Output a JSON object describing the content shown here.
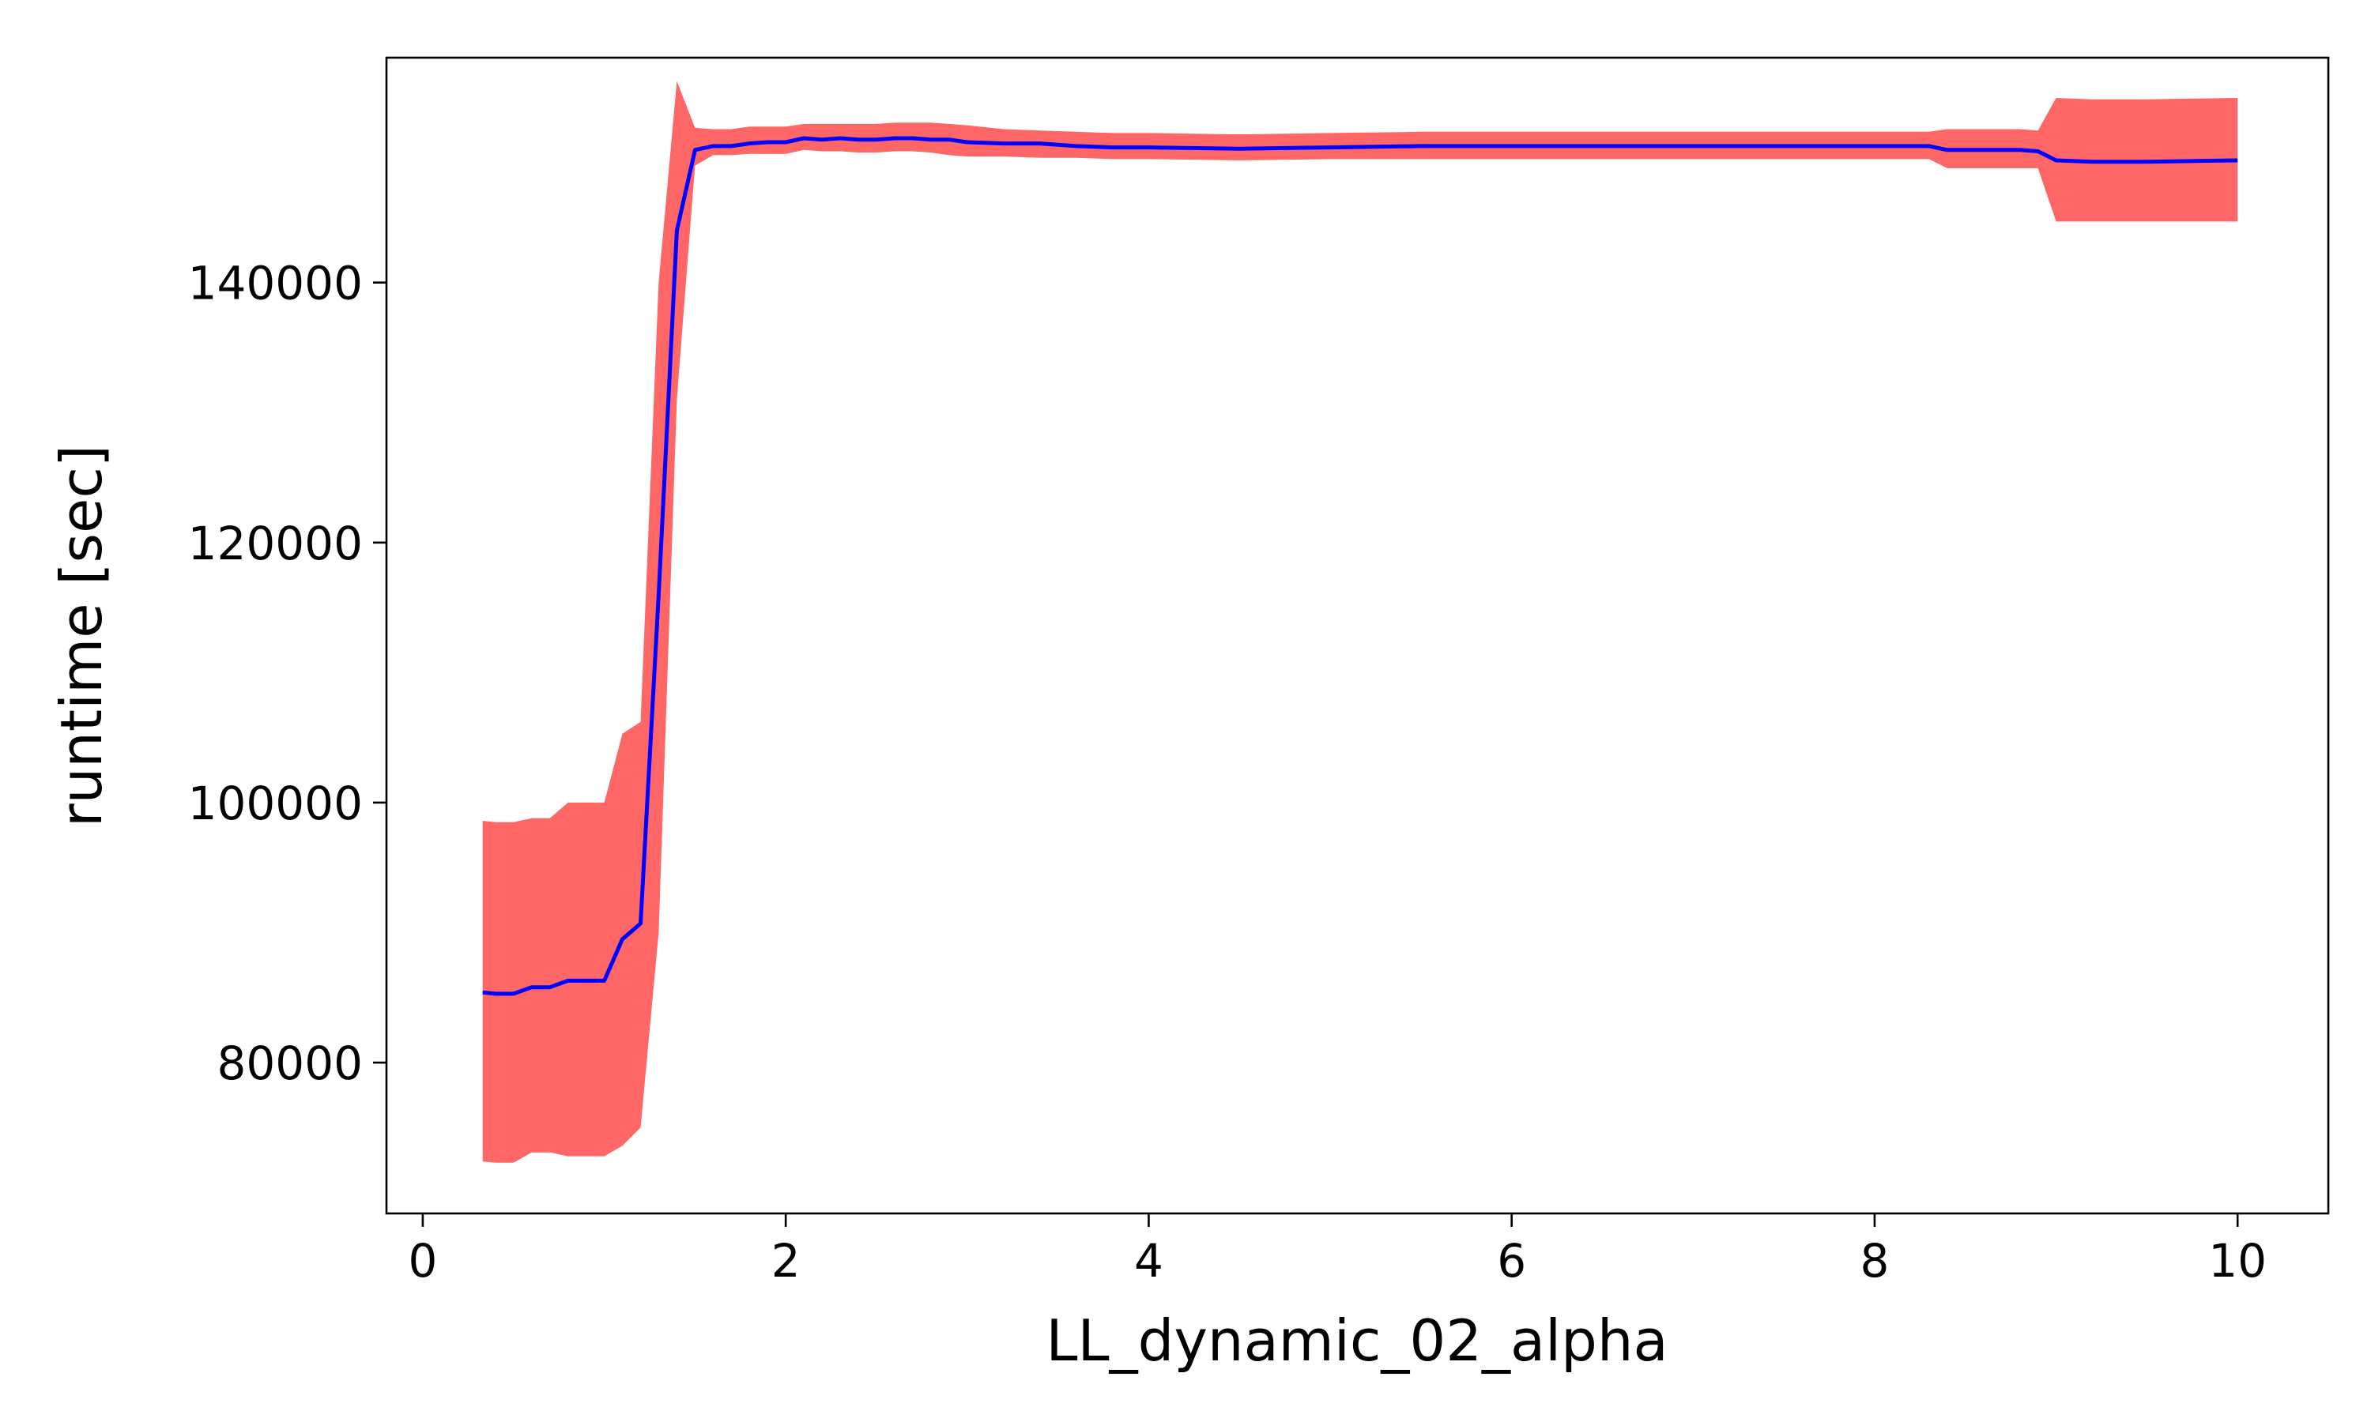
{
  "chart_data": {
    "type": "line",
    "title": "",
    "xlabel": "LL_dynamic_02_alpha",
    "ylabel": "runtime [sec]",
    "xlim": [
      -0.2,
      10.5
    ],
    "ylim": [
      68400,
      157300
    ],
    "xticks": [
      0,
      2,
      4,
      6,
      8,
      10
    ],
    "yticks": [
      80000,
      100000,
      120000,
      140000
    ],
    "xtick_labels": [
      "0",
      "2",
      "4",
      "6",
      "8",
      "10"
    ],
    "ytick_labels": [
      "80000",
      "100000",
      "120000",
      "140000"
    ],
    "grid": false,
    "legend": "none",
    "colors": {
      "line": "#0000ff",
      "band": "#ff6666"
    },
    "x": [
      0.33,
      0.4,
      0.5,
      0.6,
      0.7,
      0.8,
      0.9,
      1.0,
      1.1,
      1.2,
      1.3,
      1.4,
      1.5,
      1.6,
      1.7,
      1.8,
      1.9,
      2.0,
      2.1,
      2.2,
      2.3,
      2.4,
      2.5,
      2.6,
      2.7,
      2.8,
      2.9,
      3.0,
      3.2,
      3.4,
      3.6,
      3.8,
      4.0,
      4.5,
      5.0,
      5.5,
      6.0,
      6.5,
      7.0,
      7.5,
      8.0,
      8.3,
      8.4,
      8.6,
      8.8,
      8.9,
      9.0,
      9.2,
      9.5,
      10.0
    ],
    "mean": [
      85400,
      85300,
      85300,
      85800,
      85800,
      86300,
      86300,
      86300,
      89500,
      90700,
      116000,
      144000,
      150200,
      150500,
      150500,
      150700,
      150800,
      150800,
      151100,
      151000,
      151100,
      151000,
      151000,
      151100,
      151100,
      151000,
      151000,
      150800,
      150700,
      150700,
      150500,
      150400,
      150400,
      150300,
      150400,
      150500,
      150500,
      150500,
      150500,
      150500,
      150500,
      150500,
      150200,
      150200,
      150200,
      150100,
      149400,
      149300,
      149300,
      149400
    ],
    "lower": [
      72400,
      72300,
      72300,
      73100,
      73100,
      72800,
      72800,
      72800,
      73600,
      75000,
      90000,
      131000,
      149000,
      149800,
      149800,
      149900,
      149900,
      149900,
      150200,
      150100,
      150100,
      150000,
      150000,
      150100,
      150100,
      150000,
      149800,
      149700,
      149700,
      149600,
      149600,
      149500,
      149500,
      149400,
      149500,
      149500,
      149500,
      149500,
      149500,
      149500,
      149500,
      149500,
      148800,
      148800,
      148800,
      148800,
      144700,
      144700,
      144700,
      144700
    ],
    "upper": [
      98600,
      98500,
      98500,
      98800,
      98800,
      100000,
      100000,
      100000,
      105300,
      106200,
      140000,
      155500,
      151900,
      151800,
      151800,
      152000,
      152000,
      152000,
      152200,
      152200,
      152200,
      152200,
      152200,
      152300,
      152300,
      152300,
      152200,
      152100,
      151800,
      151700,
      151600,
      151500,
      151500,
      151400,
      151500,
      151600,
      151600,
      151600,
      151600,
      151600,
      151600,
      151600,
      151800,
      151800,
      151800,
      151700,
      154200,
      154100,
      154100,
      154200
    ]
  }
}
